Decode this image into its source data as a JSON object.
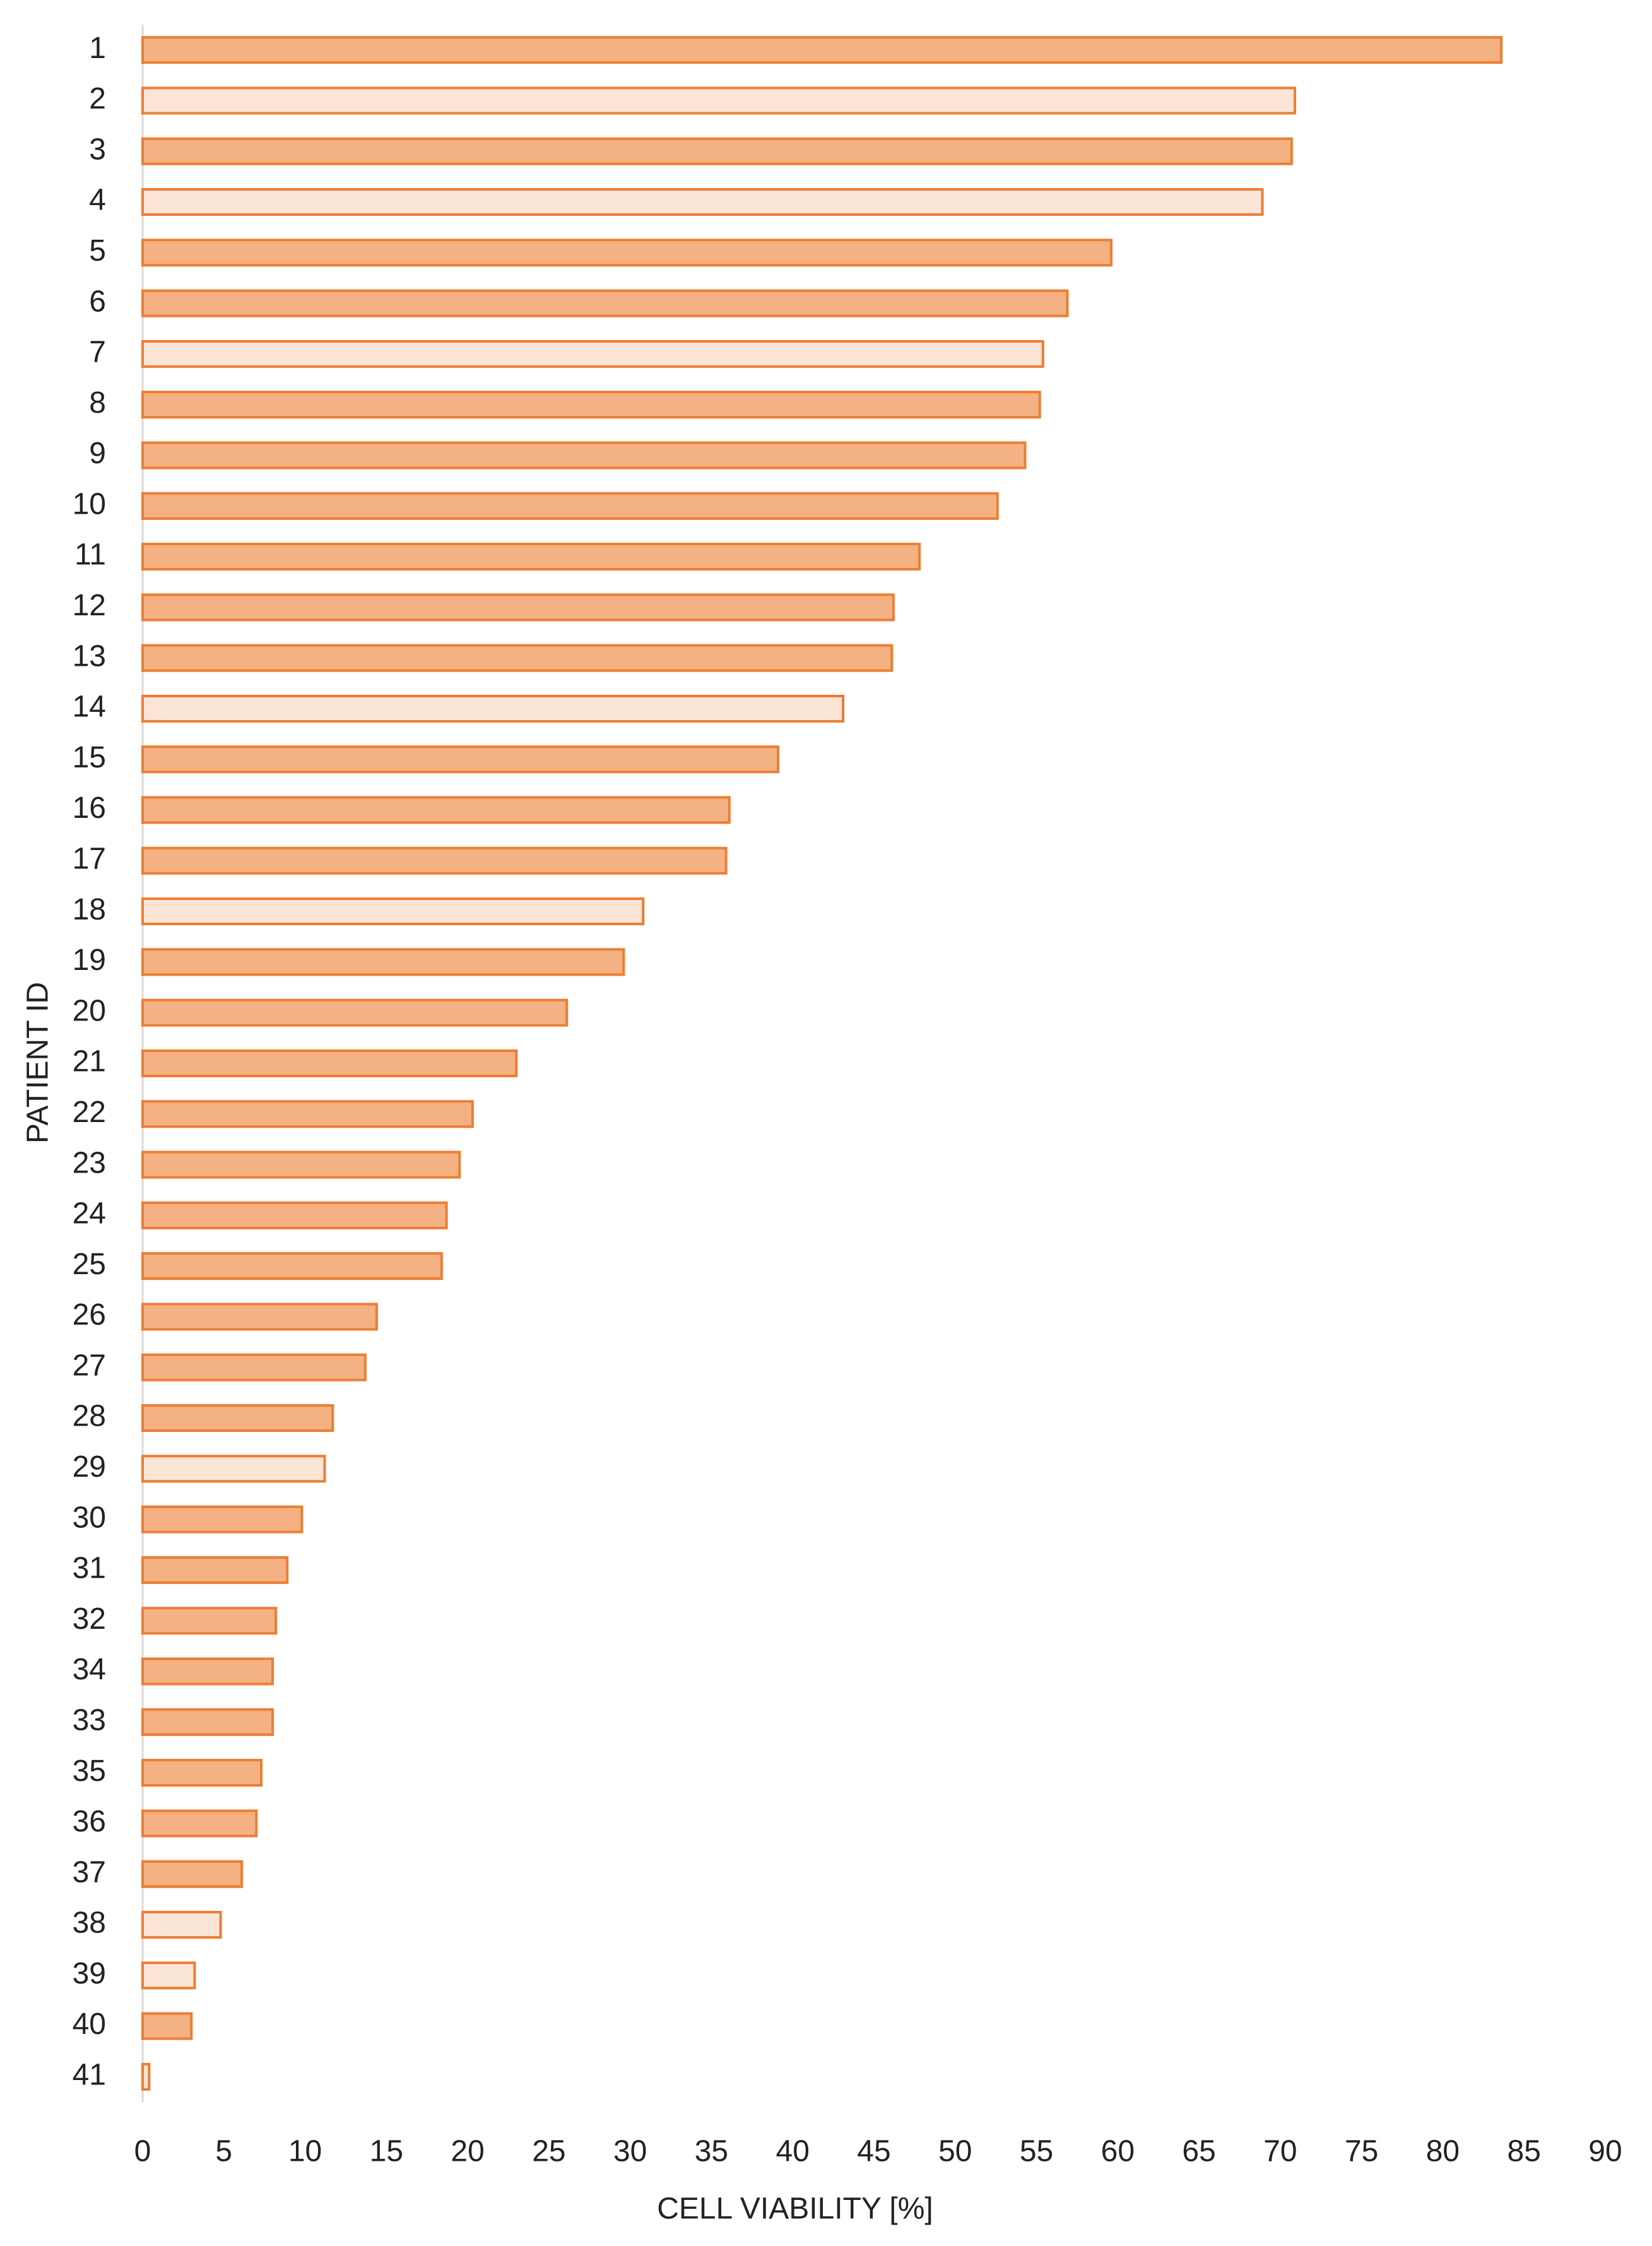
{
  "chart_data": {
    "type": "bar",
    "orientation": "horizontal",
    "x_label": "CELL VIABILITY [%]",
    "y_label": "PATIENT ID",
    "categories": [
      "1",
      "2",
      "3",
      "4",
      "5",
      "6",
      "7",
      "8",
      "9",
      "10",
      "11",
      "12",
      "13",
      "14",
      "15",
      "16",
      "17",
      "18",
      "19",
      "20",
      "21",
      "22",
      "23",
      "24",
      "25",
      "26",
      "27",
      "28",
      "29",
      "30",
      "31",
      "32",
      "34",
      "33",
      "35",
      "36",
      "37",
      "38",
      "39",
      "40",
      "41"
    ],
    "values": [
      83.6,
      70.9,
      70.7,
      68.9,
      59.6,
      56.9,
      55.4,
      55.2,
      54.3,
      52.6,
      47.8,
      46.2,
      46.1,
      43.1,
      39.1,
      36.1,
      35.9,
      30.8,
      29.6,
      26.1,
      23.0,
      20.3,
      19.5,
      18.7,
      18.4,
      14.4,
      13.7,
      11.7,
      11.2,
      9.8,
      8.9,
      8.2,
      8.0,
      8.0,
      7.3,
      7.0,
      6.1,
      4.8,
      3.2,
      3.0,
      0.4
    ],
    "colors": [
      "#f4b183",
      "#fbe5d6",
      "#f4b183",
      "#fbe5d6",
      "#f4b183",
      "#f4b183",
      "#fbe5d6",
      "#f4b183",
      "#f4b183",
      "#f4b183",
      "#f4b183",
      "#f4b183",
      "#f4b183",
      "#fbe5d6",
      "#f4b183",
      "#f4b183",
      "#f4b183",
      "#fbe5d6",
      "#f4b183",
      "#f4b183",
      "#f4b183",
      "#f4b183",
      "#f4b183",
      "#f4b183",
      "#f4b183",
      "#f4b183",
      "#f4b183",
      "#f4b183",
      "#fbe5d6",
      "#f4b183",
      "#f4b183",
      "#f4b183",
      "#f4b183",
      "#f4b183",
      "#f4b183",
      "#f4b183",
      "#f4b183",
      "#fbe5d6",
      "#fbe5d6",
      "#f4b183",
      "#fbe5d6"
    ],
    "edge_color": "#ed7d31",
    "xlim": [
      0,
      90
    ],
    "xticks": [
      0,
      5,
      10,
      15,
      20,
      25,
      30,
      35,
      40,
      45,
      50,
      55,
      60,
      65,
      70,
      75,
      80,
      85,
      90
    ],
    "grid": false
  }
}
